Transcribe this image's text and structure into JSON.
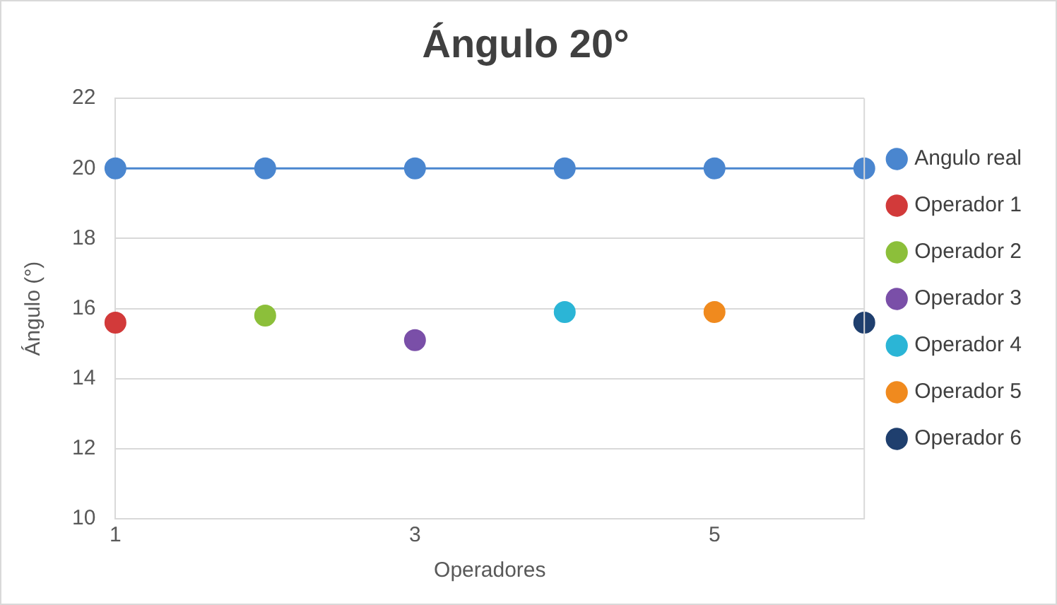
{
  "chart_data": {
    "type": "scatter",
    "title": "Ángulo 20°",
    "xlabel": "Operadores",
    "ylabel": "Ángulo (°)",
    "xlim": [
      1,
      6
    ],
    "xticks": [
      1,
      3,
      5
    ],
    "ylim": [
      10,
      22
    ],
    "yticks": [
      10,
      12,
      14,
      16,
      18,
      20,
      22
    ],
    "grid": "y",
    "legend": "right",
    "marker": "circle",
    "series": [
      {
        "name": "Angulo real",
        "type": "line",
        "color": "#4a86cf",
        "x": [
          1,
          2,
          3,
          4,
          5,
          6
        ],
        "values": [
          20,
          20,
          20,
          20,
          20,
          20
        ]
      },
      {
        "name": "Operador 1",
        "color": "#d23a3a",
        "x": [
          1
        ],
        "values": [
          15.6
        ]
      },
      {
        "name": "Operador 2",
        "color": "#8cbf3a",
        "x": [
          2
        ],
        "values": [
          15.8
        ]
      },
      {
        "name": "Operador 3",
        "color": "#7a4fa8",
        "x": [
          3
        ],
        "values": [
          15.1
        ]
      },
      {
        "name": "Operador 4",
        "color": "#2bb5d6",
        "x": [
          4
        ],
        "values": [
          15.9
        ]
      },
      {
        "name": "Operador 5",
        "color": "#f08a1e",
        "x": [
          5
        ],
        "values": [
          15.9
        ]
      },
      {
        "name": "Operador 6",
        "color": "#1f3f6e",
        "x": [
          6
        ],
        "values": [
          15.6
        ]
      }
    ]
  }
}
